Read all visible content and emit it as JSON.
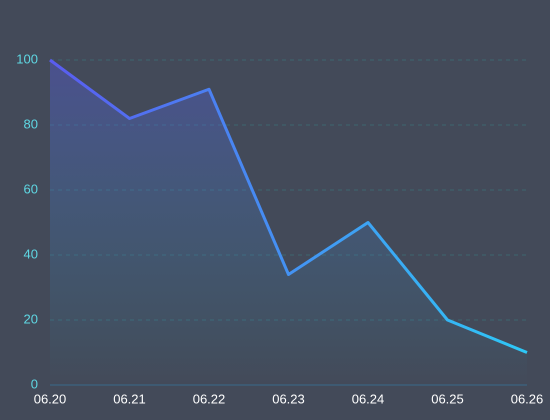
{
  "chart_data": {
    "type": "line",
    "categories": [
      "06.20",
      "06.21",
      "06.22",
      "06.23",
      "06.24",
      "06.25",
      "06.26"
    ],
    "values": [
      100,
      82,
      91,
      34,
      50,
      20,
      10
    ],
    "color": [
      "#5a5cf0",
      "#2ec8f6"
    ],
    "ylim": [
      0,
      100
    ],
    "yticks": [
      0,
      20,
      40,
      60,
      80,
      100
    ],
    "grid": true,
    "area": true
  }
}
